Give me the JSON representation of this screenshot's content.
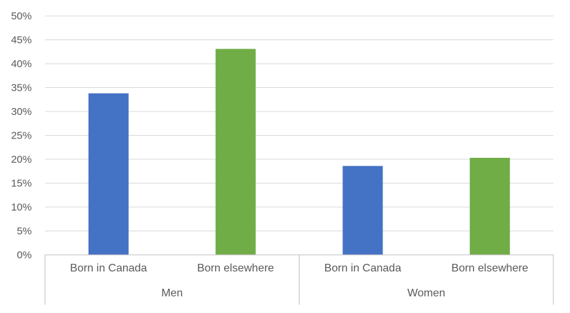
{
  "chart_data": {
    "type": "bar",
    "title": "",
    "xlabel": "",
    "ylabel": "",
    "ylim": [
      0,
      0.5
    ],
    "y_ticks": [
      0,
      0.05,
      0.1,
      0.15,
      0.2,
      0.25,
      0.3,
      0.35,
      0.4,
      0.45,
      0.5
    ],
    "y_tick_labels": [
      "0%",
      "5%",
      "10%",
      "15%",
      "20%",
      "25%",
      "30%",
      "35%",
      "40%",
      "45%",
      "50%"
    ],
    "grid": true,
    "legend": "none",
    "groups": [
      {
        "label": "Men",
        "bars": [
          {
            "category": "Born in Canada",
            "value": 0.338,
            "color": "#4472c4"
          },
          {
            "category": "Born elsewhere",
            "value": 0.431,
            "color": "#70ad47"
          }
        ]
      },
      {
        "label": "Women",
        "bars": [
          {
            "category": "Born in Canada",
            "value": 0.186,
            "color": "#4472c4"
          },
          {
            "category": "Born elsewhere",
            "value": 0.203,
            "color": "#70ad47"
          }
        ]
      }
    ]
  }
}
